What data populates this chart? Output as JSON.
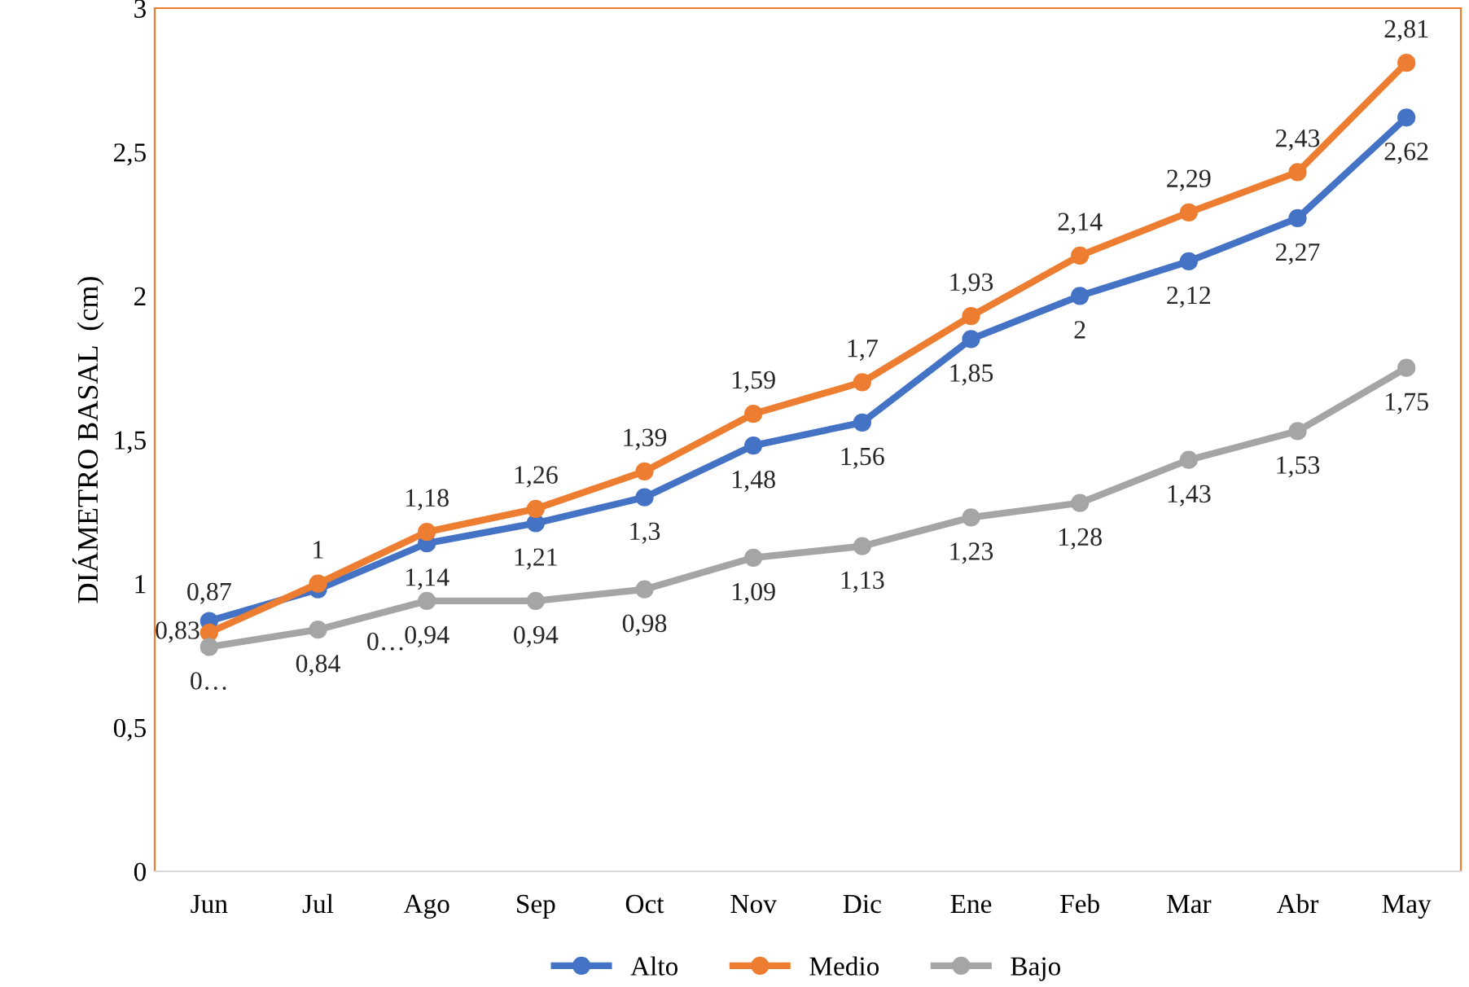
{
  "chart_data": {
    "type": "line",
    "ylabel": "DIÁMETRO BASAL  (cm)",
    "categories": [
      "Jun",
      "Jul",
      "Ago",
      "Sep",
      "Oct",
      "Nov",
      "Dic",
      "Ene",
      "Feb",
      "Mar",
      "Abr",
      "May"
    ],
    "series": [
      {
        "name": "Alto",
        "color": "#4472c4",
        "values": [
          0.87,
          0.98,
          1.14,
          1.21,
          1.3,
          1.48,
          1.56,
          1.85,
          2,
          2.12,
          2.27,
          2.62
        ],
        "value_labels": [
          "0,87",
          "0…",
          "1,14",
          "1,21",
          "1,3",
          "1,48",
          "1,56",
          "1,85",
          "2",
          "2,12",
          "2,27",
          "2,62"
        ]
      },
      {
        "name": "Medio",
        "color": "#ed7d31",
        "values": [
          0.83,
          1,
          1.18,
          1.26,
          1.39,
          1.59,
          1.7,
          1.93,
          2.14,
          2.29,
          2.43,
          2.81
        ],
        "value_labels": [
          "0,83",
          "1",
          "1,18",
          "1,26",
          "1,39",
          "1,59",
          "1,7",
          "1,93",
          "2,14",
          "2,29",
          "2,43",
          "2,81"
        ]
      },
      {
        "name": "Bajo",
        "color": "#a5a5a5",
        "values": [
          0.78,
          0.84,
          0.94,
          0.94,
          0.98,
          1.09,
          1.13,
          1.23,
          1.28,
          1.43,
          1.53,
          1.75
        ],
        "value_labels": [
          "0…",
          "0,84",
          "0,94",
          "0,94",
          "0,98",
          "1,09",
          "1,13",
          "1,23",
          "1,28",
          "1,43",
          "1,53",
          "1,75"
        ]
      }
    ],
    "ylim": [
      0,
      3
    ],
    "yticks": [
      0,
      {
        "value": 0.5,
        "label": "0,5"
      },
      1,
      {
        "value": 1.5,
        "label": "1,5"
      },
      2,
      {
        "value": 2.5,
        "label": "2,5"
      },
      3
    ],
    "grid": false,
    "legend": "bottom",
    "marker": "circle",
    "line_style": "solid"
  }
}
